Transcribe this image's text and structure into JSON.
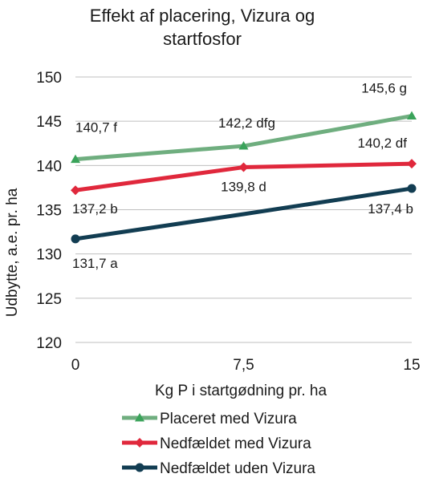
{
  "chart_data": {
    "type": "line",
    "title": [
      "Effekt af placering, Vizura og",
      "startfosfor"
    ],
    "xlabel": "Kg P i startgødning pr. ha",
    "ylabel": "Udbytte, a.e. pr. ha",
    "x": [
      0,
      7.5,
      15
    ],
    "x_tick_labels": [
      "0",
      "7,5",
      "15"
    ],
    "ylim": [
      120,
      150
    ],
    "y_ticks": [
      120,
      125,
      130,
      135,
      140,
      145,
      150
    ],
    "grid": true,
    "legend": "bottom",
    "series": [
      {
        "name": "Placeret med Vizura",
        "color": "#6fae7f",
        "marker_color": "#3aa35a",
        "marker": "triangle",
        "values": [
          140.7,
          142.2,
          145.6
        ],
        "labels": [
          "140,7 f",
          "142,2 dfg",
          "145,6 g"
        ]
      },
      {
        "name": "Nedfældet med Vizura",
        "color": "#e0283c",
        "marker_color": "#e0283c",
        "marker": "diamond",
        "values": [
          137.2,
          139.8,
          140.2
        ],
        "labels": [
          "137,2 b",
          "139,8 d",
          "140,2 df"
        ]
      },
      {
        "name": "Nedfældet uden Vizura",
        "color": "#123d52",
        "marker_color": "#123d52",
        "marker": "circle",
        "values": [
          131.7,
          134.5,
          137.4
        ],
        "labels": [
          "131,7 a",
          null,
          "137,4 b"
        ]
      }
    ]
  }
}
